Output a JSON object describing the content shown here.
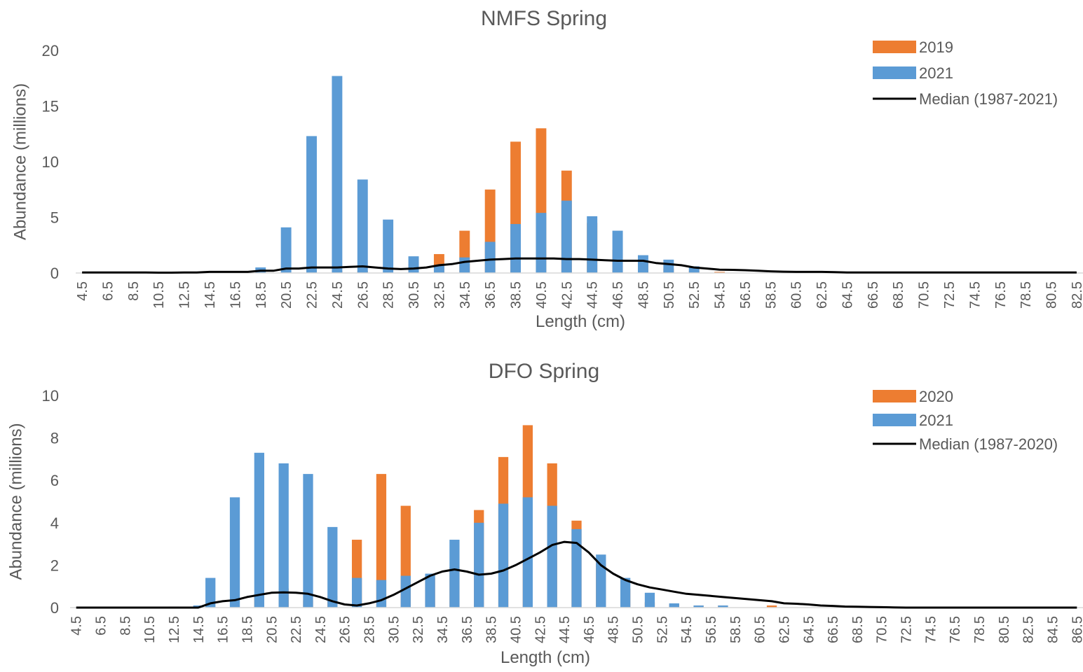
{
  "colors": {
    "orange": "#ED7D31",
    "blue": "#5B9BD5",
    "median": "#000000",
    "axis": "#D9D9D9",
    "text": "#595959"
  },
  "chart_data": [
    {
      "type": "bar",
      "title": "NMFS Spring",
      "xlabel": "Length (cm)",
      "ylabel": "Abundance (millions)",
      "ylim": [
        0,
        20
      ],
      "yticks": [
        0,
        5,
        10,
        15,
        20
      ],
      "grid": false,
      "legend_position": "top-right",
      "x": [
        4.5,
        5.5,
        6.5,
        7.5,
        8.5,
        9.5,
        10.5,
        11.5,
        12.5,
        13.5,
        14.5,
        15.5,
        16.5,
        17.5,
        18.5,
        19.5,
        20.5,
        21.5,
        22.5,
        23.5,
        24.5,
        25.5,
        26.5,
        27.5,
        28.5,
        29.5,
        30.5,
        31.5,
        32.5,
        33.5,
        34.5,
        35.5,
        36.5,
        37.5,
        38.5,
        39.5,
        40.5,
        41.5,
        42.5,
        43.5,
        44.5,
        45.5,
        46.5,
        47.5,
        48.5,
        49.5,
        50.5,
        51.5,
        52.5,
        53.5,
        54.5,
        55.5,
        56.5,
        57.5,
        58.5,
        59.5,
        60.5,
        61.5,
        62.5,
        63.5,
        64.5,
        65.5,
        66.5,
        67.5,
        68.5,
        69.5,
        70.5,
        71.5,
        72.5,
        73.5,
        74.5,
        75.5,
        76.5,
        77.5,
        78.5,
        79.5,
        80.5,
        81.5,
        82.5
      ],
      "xtick_labels": [
        "4.5",
        "6.5",
        "8.5",
        "10.5",
        "12.5",
        "14.5",
        "16.5",
        "18.5",
        "20.5",
        "22.5",
        "24.5",
        "26.5",
        "28.5",
        "30.5",
        "32.5",
        "34.5",
        "36.5",
        "38.5",
        "40.5",
        "42.5",
        "44.5",
        "46.5",
        "48.5",
        "50.5",
        "52.5",
        "54.5",
        "56.5",
        "58.5",
        "60.5",
        "62.5",
        "64.5",
        "66.5",
        "68.5",
        "70.5",
        "72.5",
        "74.5",
        "76.5",
        "78.5",
        "80.5",
        "82.5"
      ],
      "series": [
        {
          "name": "2019",
          "type": "bar",
          "color": "#ED7D31",
          "values": [
            0,
            0,
            0,
            0,
            0,
            0,
            0,
            0,
            0,
            0,
            0,
            0,
            0.1,
            0,
            0,
            0,
            0,
            0,
            0.3,
            0,
            0.2,
            0,
            0.2,
            0,
            0,
            0,
            0.8,
            0,
            1.7,
            0,
            3.8,
            0,
            7.5,
            0,
            11.8,
            0,
            13.0,
            0,
            9.2,
            0,
            4.5,
            0,
            2.1,
            0,
            0.9,
            0,
            0.4,
            0,
            0.2,
            0,
            0.1,
            0,
            0,
            0,
            0,
            0,
            0,
            0,
            0,
            0,
            0,
            0,
            0,
            0,
            0,
            0,
            0,
            0,
            0,
            0,
            0,
            0,
            0,
            0,
            0,
            0,
            0,
            0,
            0
          ]
        },
        {
          "name": "2021",
          "type": "bar",
          "color": "#5B9BD5",
          "values": [
            0,
            0,
            0,
            0,
            0.1,
            0,
            0,
            0,
            0,
            0,
            0,
            0,
            0,
            0,
            0.5,
            0,
            4.1,
            0,
            12.3,
            0,
            17.7,
            0,
            8.4,
            0,
            4.8,
            0,
            1.5,
            0,
            0.7,
            0,
            1.4,
            0,
            2.8,
            0,
            4.4,
            0,
            5.4,
            0,
            6.5,
            0,
            5.1,
            0,
            3.8,
            0,
            1.6,
            0,
            1.2,
            0,
            0.6,
            0,
            0,
            0,
            0,
            0,
            0,
            0,
            0,
            0,
            0,
            0,
            0,
            0,
            0,
            0,
            0,
            0,
            0,
            0,
            0,
            0,
            0,
            0,
            0,
            0,
            0,
            0,
            0,
            0,
            0
          ]
        },
        {
          "name": "Median (1987-2021)",
          "type": "line",
          "color": "#000000",
          "values": [
            0.05,
            0.05,
            0.05,
            0.05,
            0.05,
            0.05,
            0.03,
            0.03,
            0.05,
            0.05,
            0.1,
            0.1,
            0.1,
            0.1,
            0.2,
            0.2,
            0.4,
            0.4,
            0.5,
            0.5,
            0.5,
            0.55,
            0.6,
            0.5,
            0.4,
            0.35,
            0.4,
            0.5,
            0.7,
            0.8,
            1.0,
            1.1,
            1.2,
            1.25,
            1.3,
            1.3,
            1.3,
            1.3,
            1.25,
            1.25,
            1.2,
            1.15,
            1.1,
            1.1,
            1.1,
            0.9,
            0.8,
            0.7,
            0.5,
            0.4,
            0.3,
            0.28,
            0.25,
            0.2,
            0.15,
            0.12,
            0.1,
            0.1,
            0.1,
            0.08,
            0.05,
            0.05,
            0.05,
            0.05,
            0.05,
            0.05,
            0.05,
            0.05,
            0.05,
            0.05,
            0.05,
            0.05,
            0.05,
            0.05,
            0.05,
            0.05,
            0.05,
            0.05,
            0.05
          ]
        }
      ]
    },
    {
      "type": "bar",
      "title": "DFO Spring",
      "xlabel": "Length (cm)",
      "ylabel": "Abundance (millions)",
      "ylim": [
        0,
        10
      ],
      "yticks": [
        0,
        2,
        4,
        6,
        8,
        10
      ],
      "grid": false,
      "legend_position": "top-right",
      "x": [
        4.5,
        5.5,
        6.5,
        7.5,
        8.5,
        9.5,
        10.5,
        11.5,
        12.5,
        13.5,
        14.5,
        15.5,
        16.5,
        17.5,
        18.5,
        19.5,
        20.5,
        21.5,
        22.5,
        23.5,
        24.5,
        25.5,
        26.5,
        27.5,
        28.5,
        29.5,
        30.5,
        31.5,
        32.5,
        33.5,
        34.5,
        35.5,
        36.5,
        37.5,
        38.5,
        39.5,
        40.5,
        41.5,
        42.5,
        43.5,
        44.5,
        45.5,
        46.5,
        47.5,
        48.5,
        49.5,
        50.5,
        51.5,
        52.5,
        53.5,
        54.5,
        55.5,
        56.5,
        57.5,
        58.5,
        59.5,
        60.5,
        61.5,
        62.5,
        63.5,
        64.5,
        65.5,
        66.5,
        67.5,
        68.5,
        69.5,
        70.5,
        71.5,
        72.5,
        73.5,
        74.5,
        75.5,
        76.5,
        77.5,
        78.5,
        79.5,
        80.5,
        81.5,
        82.5,
        83.5,
        84.5,
        85.5,
        86.5
      ],
      "xtick_labels": [
        "4.5",
        "6.5",
        "8.5",
        "10.5",
        "12.5",
        "14.5",
        "16.5",
        "18.5",
        "20.5",
        "22.5",
        "24.5",
        "26.5",
        "28.5",
        "30.5",
        "32.5",
        "34.5",
        "36.5",
        "38.5",
        "40.5",
        "42.5",
        "44.5",
        "46.5",
        "48.5",
        "50.5",
        "52.5",
        "54.5",
        "56.5",
        "58.5",
        "60.5",
        "62.5",
        "64.5",
        "66.5",
        "68.5",
        "70.5",
        "72.5",
        "74.5",
        "76.5",
        "78.5",
        "80.5",
        "82.5",
        "84.5",
        "86.5"
      ],
      "series": [
        {
          "name": "2020",
          "type": "bar",
          "color": "#ED7D31",
          "values": [
            0,
            0,
            0,
            0,
            0,
            0,
            0,
            0,
            0,
            0,
            0,
            0,
            0,
            0,
            0,
            0.5,
            0,
            0.9,
            0,
            0.35,
            0,
            0.55,
            0,
            3.2,
            0,
            6.3,
            0,
            4.8,
            0,
            1.4,
            0,
            1.9,
            0,
            4.6,
            0,
            7.1,
            0,
            8.6,
            0,
            6.8,
            0,
            4.1,
            0,
            2.1,
            0,
            0.9,
            0,
            0.25,
            0,
            0.15,
            0,
            0.1,
            0,
            0.1,
            0,
            0,
            0,
            0.1,
            0,
            0,
            0,
            0,
            0,
            0,
            0,
            0,
            0,
            0,
            0,
            0,
            0,
            0,
            0,
            0,
            0,
            0,
            0,
            0,
            0,
            0,
            0,
            0,
            0
          ]
        },
        {
          "name": "2021",
          "type": "bar",
          "color": "#5B9BD5",
          "values": [
            0,
            0,
            0,
            0,
            0,
            0,
            0,
            0,
            0.05,
            0,
            0.1,
            1.4,
            0,
            5.2,
            0,
            7.3,
            0,
            6.8,
            0,
            6.3,
            0,
            3.8,
            0,
            1.4,
            0,
            1.3,
            0,
            1.5,
            0,
            1.6,
            0,
            3.2,
            0,
            4.0,
            0,
            4.9,
            0,
            5.2,
            0,
            4.8,
            0,
            3.7,
            0,
            2.5,
            0,
            1.4,
            0,
            0.7,
            0,
            0.2,
            0,
            0.1,
            0,
            0.1,
            0,
            0,
            0,
            0,
            0,
            0,
            0,
            0,
            0,
            0,
            0,
            0,
            0,
            0,
            0,
            0,
            0,
            0,
            0,
            0,
            0,
            0,
            0,
            0,
            0,
            0,
            0,
            0,
            0
          ]
        },
        {
          "name": "Median (1987-2020)",
          "type": "line",
          "color": "#000000",
          "values": [
            0,
            0,
            0,
            0,
            0,
            0,
            0,
            0,
            0,
            0,
            0,
            0.2,
            0.3,
            0.35,
            0.5,
            0.6,
            0.7,
            0.72,
            0.7,
            0.65,
            0.5,
            0.3,
            0.15,
            0.1,
            0.2,
            0.35,
            0.6,
            0.9,
            1.2,
            1.5,
            1.7,
            1.8,
            1.7,
            1.55,
            1.6,
            1.75,
            2.0,
            2.3,
            2.6,
            2.95,
            3.1,
            3.05,
            2.6,
            2.0,
            1.6,
            1.3,
            1.1,
            0.95,
            0.85,
            0.75,
            0.65,
            0.6,
            0.55,
            0.5,
            0.45,
            0.4,
            0.35,
            0.3,
            0.2,
            0.18,
            0.15,
            0.1,
            0.08,
            0.05,
            0.04,
            0.03,
            0.02,
            0.01,
            0,
            0,
            0,
            0,
            0,
            0,
            0,
            0,
            0,
            0,
            0,
            0,
            0,
            0,
            0
          ]
        }
      ]
    }
  ]
}
